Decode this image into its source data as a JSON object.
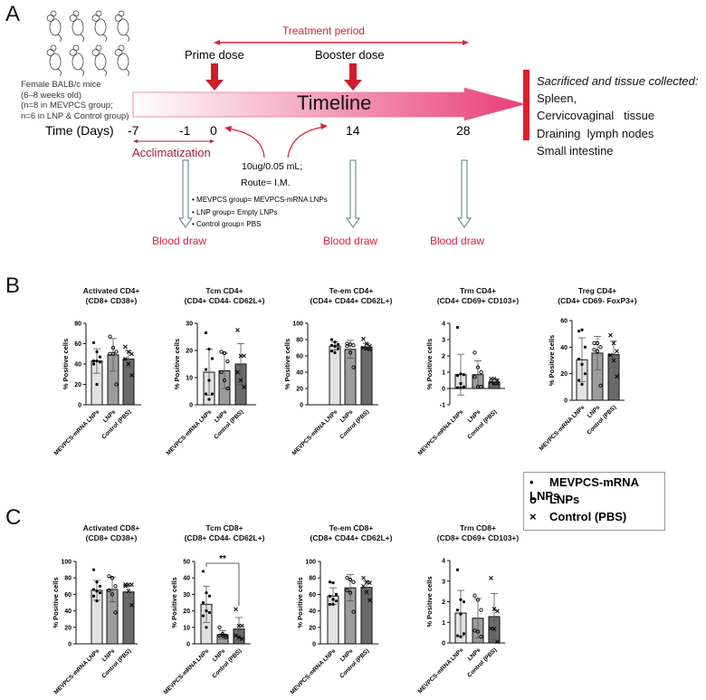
{
  "panels": {
    "a": "A",
    "b": "B",
    "c": "C"
  },
  "timeline": {
    "mice_caption": [
      "Female BALB/c mice",
      "(6–8 weeks old)",
      "(n=8 in MEVPCS group;",
      "n=6 in LNP & Control group)"
    ],
    "treatment_period": "Treatment period",
    "prime_dose": "Prime dose",
    "booster_dose": "Booster dose",
    "timeline_label": "Timeline",
    "time_label": "Time (Days)",
    "days": [
      "-7",
      "-1",
      "0",
      "14",
      "28"
    ],
    "acclimatization": "Acclimatization",
    "dose": "10ug/0.05 mL;",
    "route": "Route= I.M.",
    "groups": [
      "MEVPCS group= MEVPCS-mRNA LNPs",
      "LNP group= Empty LNPs",
      "Control group= PBS"
    ],
    "blood_draw": "Blood draw",
    "sacrificed_title": "Sacrificed and tissue collected:",
    "tissues": [
      "Spleen,",
      "Cervicovaginal   tissue",
      "Draining  lymph nodes",
      "Small intestine"
    ],
    "colors": {
      "accent_red": "#d8203a",
      "timeline_gradient_end": "#e83e78",
      "hollow_arrow": "#5a7a7a"
    }
  },
  "legend": [
    {
      "symbol": "•",
      "label": "MEVPCS-mRNA LNPs"
    },
    {
      "symbol": "o",
      "label": "LNPs"
    },
    {
      "symbol": "×",
      "label": "Control (PBS)"
    }
  ],
  "chart_data": [
    {
      "type": "bar",
      "panel": "B",
      "title": "Activated CD4+",
      "subtitle": "(CD8+ CD38+)",
      "ylabel": "% Positive cells",
      "ylim": [
        0,
        80
      ],
      "ticks": [
        0,
        20,
        40,
        60,
        80
      ],
      "categories": [
        "MEVPCS-mRNA LNPs",
        "LNPs",
        "Control (PBS)"
      ],
      "means": [
        43,
        49,
        45
      ],
      "sd": [
        12,
        16,
        8
      ],
      "points": [
        [
          61,
          52,
          47,
          43,
          43,
          42,
          40,
          20
        ],
        [
          67,
          56,
          52,
          50,
          50,
          20
        ],
        [
          57,
          52,
          50,
          45,
          40,
          29
        ]
      ]
    },
    {
      "type": "bar",
      "panel": "B",
      "title": "Tcm CD4+",
      "subtitle": "(CD4+ CD44- CD62L+)",
      "ylabel": "% Positive cells",
      "ylim": [
        0,
        30
      ],
      "ticks": [
        0,
        10,
        20,
        30
      ],
      "categories": [
        "MEVPCS-mRNA LNPs",
        "LNPs",
        "Control (PBS)"
      ],
      "means": [
        12,
        12.5,
        15
      ],
      "sd": [
        8.5,
        6.5,
        7.5
      ],
      "points": [
        [
          26.5,
          20.5,
          17,
          13,
          9,
          4,
          4,
          2
        ],
        [
          19.5,
          19,
          16,
          12,
          9,
          6
        ],
        [
          27.5,
          18,
          18,
          12,
          9,
          6.5
        ]
      ]
    },
    {
      "type": "bar",
      "panel": "B",
      "title": "Te-em CD4+",
      "subtitle": "(CD4+ CD44+ CD62L+)",
      "ylabel": "% Positive cells",
      "ylim": [
        0,
        100
      ],
      "ticks": [
        0,
        20,
        40,
        60,
        80,
        100
      ],
      "categories": [
        "MEVPCS-mRNA LNPs",
        "LNPs",
        "Control (PBS)"
      ],
      "means": [
        72,
        68,
        71
      ],
      "sd": [
        5,
        11,
        4
      ],
      "points": [
        [
          80,
          77,
          74,
          73,
          72,
          69,
          66,
          64
        ],
        [
          75,
          74,
          73,
          72,
          64,
          46
        ],
        [
          81,
          75,
          72,
          70,
          69,
          68
        ]
      ]
    },
    {
      "type": "bar",
      "panel": "B",
      "title": "Trm CD4+",
      "subtitle": "(CD4+ CD69+ CD103+)",
      "ylabel": "% Positive cells",
      "ylim": [
        -1,
        4
      ],
      "ticks": [
        -1,
        0,
        1,
        2,
        3,
        4
      ],
      "categories": [
        "MEVPCS-mRNA LNPs",
        "LNPs",
        "Control (PBS)"
      ],
      "means": [
        0.85,
        0.85,
        0.4
      ],
      "sd": [
        1.25,
        0.85,
        0.2
      ],
      "points": [
        [
          3.75,
          0.9,
          0.85,
          0.8,
          0.3,
          0.1,
          0.05,
          0.05
        ],
        [
          2.2,
          1.3,
          1.0,
          0.7,
          0.1,
          0.1
        ],
        [
          0.6,
          0.6,
          0.5,
          0.4,
          0.3,
          0.3
        ]
      ]
    },
    {
      "type": "bar",
      "panel": "B",
      "title": "Treg CD4+",
      "subtitle": "(CD4+ CD69- FoxP3+)",
      "ylabel": "% Positive cells",
      "ylim": [
        0,
        60
      ],
      "ticks": [
        0,
        20,
        40,
        60
      ],
      "categories": [
        "MEVPCS-mRNA LNPs",
        "LNPs",
        "Control (PBS)"
      ],
      "means": [
        30.5,
        35.5,
        34.5
      ],
      "sd": [
        16.5,
        12.5,
        10
      ],
      "points": [
        [
          52,
          53,
          40,
          31,
          27,
          20,
          15,
          12
        ],
        [
          43,
          43,
          40,
          38,
          37,
          11
        ],
        [
          49,
          43,
          37,
          34,
          30,
          18
        ]
      ]
    },
    {
      "type": "bar",
      "panel": "C",
      "title": "Activated CD8+",
      "subtitle": "(CD8+ CD38+)",
      "ylabel": "% Positive cells",
      "ylim": [
        0,
        100
      ],
      "ticks": [
        0,
        20,
        40,
        60,
        80,
        100
      ],
      "categories": [
        "MEVPCS-mRNA LNPs",
        "LNPs",
        "Control (PBS)"
      ],
      "means": [
        65,
        66,
        63
      ],
      "sd": [
        12,
        15,
        7
      ],
      "points": [
        [
          90,
          75,
          70,
          66,
          64,
          62,
          58,
          52
        ],
        [
          82,
          80,
          70,
          65,
          60,
          38
        ],
        [
          72,
          72,
          72,
          70,
          64,
          47
        ]
      ]
    },
    {
      "type": "bar",
      "panel": "C",
      "title": "Tcm CD8+",
      "subtitle": "(CD8+ CD44- CD62L+)",
      "ylabel": "% Positive cells",
      "ylim": [
        0,
        50
      ],
      "ticks": [
        0,
        10,
        20,
        30,
        40,
        50
      ],
      "categories": [
        "MEVPCS-mRNA LNPs",
        "LNPs",
        "Control (PBS)"
      ],
      "means": [
        24,
        5.5,
        9
      ],
      "sd": [
        11,
        2.5,
        7
      ],
      "points": [
        [
          44,
          31,
          29,
          25,
          20,
          19,
          17,
          10
        ],
        [
          10,
          6,
          5,
          5,
          5,
          4
        ],
        [
          21,
          11,
          11,
          5,
          4,
          3
        ]
      ],
      "significance": {
        "between": [
          0,
          2
        ],
        "label": "**"
      }
    },
    {
      "type": "bar",
      "panel": "C",
      "title": "Te-em CD8+",
      "subtitle": "(CD8+ CD44+ CD62L+)",
      "ylabel": "% Positive cells",
      "ylim": [
        0,
        100
      ],
      "ticks": [
        0,
        20,
        40,
        60,
        80,
        100
      ],
      "categories": [
        "MEVPCS-mRNA LNPs",
        "LNPs",
        "Control (PBS)"
      ],
      "means": [
        58,
        68,
        68.5
      ],
      "sd": [
        10,
        16,
        8
      ],
      "points": [
        [
          75,
          74,
          60,
          58,
          54,
          52,
          48,
          48
        ],
        [
          80,
          78,
          75,
          65,
          62,
          39
        ],
        [
          80,
          75,
          74,
          70,
          63,
          53
        ]
      ]
    },
    {
      "type": "bar",
      "panel": "C",
      "title": "Trm CD8+",
      "subtitle": "(CD8+ CD69+ CD103+)",
      "ylabel": "% Positive cells",
      "ylim": [
        0,
        4
      ],
      "ticks": [
        0,
        1,
        2,
        3,
        4
      ],
      "categories": [
        "MEVPCS-mRNA LNPs",
        "LNPs",
        "Control (PBS)"
      ],
      "means": [
        1.45,
        1.2,
        1.28
      ],
      "sd": [
        1.1,
        0.95,
        1.12
      ],
      "points": [
        [
          3.55,
          2.1,
          2.0,
          1.6,
          1.4,
          0.45,
          0.35,
          0.3
        ],
        [
          2.3,
          2.1,
          1.6,
          0.6,
          0.55,
          0.3
        ],
        [
          3.15,
          1.65,
          1.55,
          0.7,
          0.68,
          0.05
        ]
      ]
    }
  ],
  "bar_colors": [
    "#e2e2e2",
    "#9c9c9c",
    "#6a6a6a"
  ]
}
